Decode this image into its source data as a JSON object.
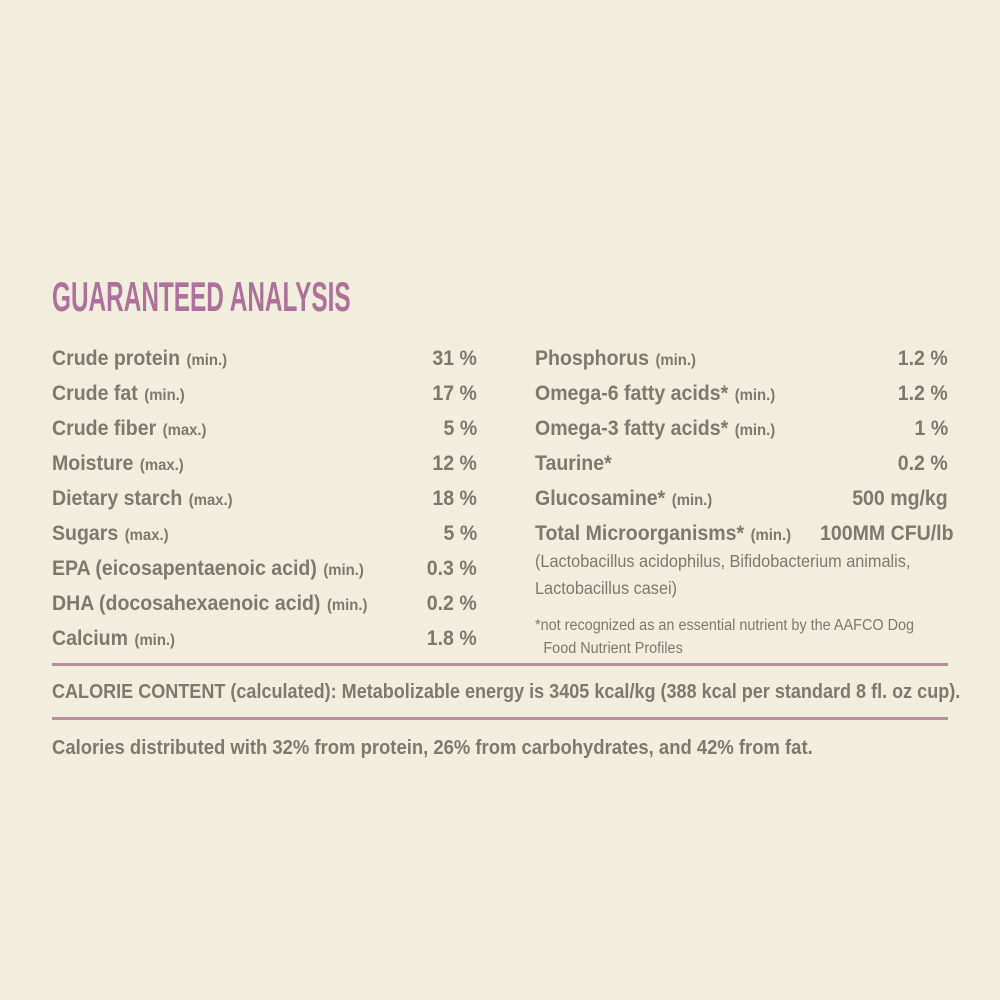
{
  "colors": {
    "background": "#f1eedd",
    "text": "#7d7a6c",
    "title": "#ae719b",
    "rule": "#b78f9d"
  },
  "title": "GUARANTEED ANALYSIS",
  "analysis": {
    "left_rows": [
      {
        "label": "Crude protein",
        "qualifier": "(min.)",
        "value": "31 %"
      },
      {
        "label": "Crude fat",
        "qualifier": "(min.)",
        "value": "17 %"
      },
      {
        "label": "Crude fiber",
        "qualifier": "(max.)",
        "value": "5 %"
      },
      {
        "label": "Moisture",
        "qualifier": "(max.)",
        "value": "12 %"
      },
      {
        "label": "Dietary starch",
        "qualifier": "(max.)",
        "value": "18 %"
      },
      {
        "label": "Sugars",
        "qualifier": "(max.)",
        "value": "5 %"
      },
      {
        "label": "EPA (eicosapentaenoic acid)",
        "qualifier": "(min.)",
        "value": "0.3 %"
      },
      {
        "label": "DHA (docosahexaenoic acid)",
        "qualifier": "(min.)",
        "value": "0.2 %"
      },
      {
        "label": "Calcium",
        "qualifier": "(min.)",
        "value": "1.8 %"
      }
    ],
    "right_rows": [
      {
        "label": "Phosphorus",
        "qualifier": "(min.)",
        "value": "1.2 %"
      },
      {
        "label": "Omega-6 fatty acids*",
        "qualifier": "(min.)",
        "value": "1.2 %"
      },
      {
        "label": "Omega-3 fatty acids*",
        "qualifier": "(min.)",
        "value": "1 %"
      },
      {
        "label": "Taurine*",
        "qualifier": "",
        "value": "0.2 %"
      },
      {
        "label": "Glucosamine*",
        "qualifier": "(min.)",
        "value": "500 mg/kg"
      },
      {
        "label": "Total Microorganisms*",
        "qualifier": "(min.)",
        "value": "100MM CFU/lb"
      }
    ],
    "microorganisms_note": "(Lactobacillus acidophilus, Bifidobacterium animalis, Lactobacillus casei)",
    "footnote": "*not recognized as an essential nutrient by the AAFCO Dog Food Nutrient Profiles"
  },
  "calorie_content": "CALORIE CONTENT (calculated): Metabolizable energy is 3405 kcal/kg (388 kcal per standard 8 fl. oz cup).",
  "calories_distribution": "Calories distributed with 32% from protein, 26% from carbohydrates, and 42% from fat."
}
